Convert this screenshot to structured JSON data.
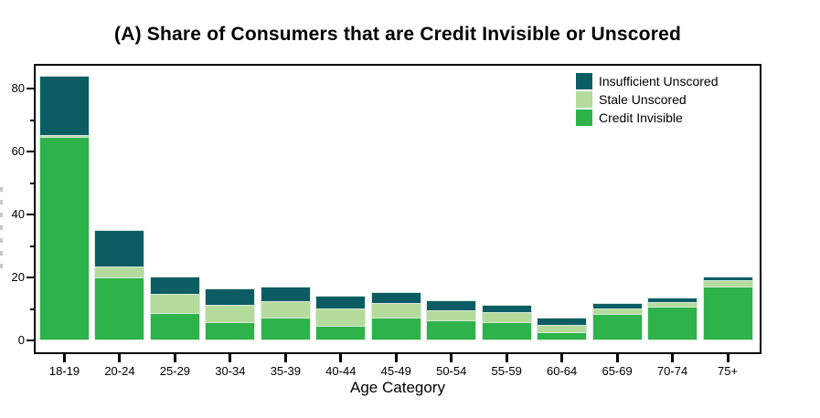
{
  "figure": {
    "title": "(A) Share of Consumers that are Credit Invisible or Unscored"
  },
  "chart_data": {
    "type": "bar",
    "stacked": true,
    "title": "(A) Share of Consumers that are Credit Invisible or Unscored",
    "xlabel": "Age Category",
    "ylabel": "",
    "ylim": [
      0,
      88
    ],
    "y_major_ticks": [
      0,
      20,
      40,
      60,
      80
    ],
    "y_minor_ticks": [
      10,
      30,
      50,
      70
    ],
    "grid": false,
    "categories": [
      "18-19",
      "20-24",
      "25-29",
      "30-34",
      "35-39",
      "40-44",
      "45-49",
      "50-54",
      "55-59",
      "60-64",
      "65-69",
      "70-74",
      "75+"
    ],
    "series": [
      {
        "name": "Credit Invisible",
        "color": "#2eb34a",
        "values": [
          64.8,
          20.0,
          8.8,
          5.6,
          7.3,
          4.6,
          7.3,
          6.4,
          5.9,
          2.4,
          8.6,
          11.0,
          17.3
        ]
      },
      {
        "name": "Stale Unscored",
        "color": "#b4db9c",
        "values": [
          0.5,
          3.6,
          6.0,
          5.9,
          5.3,
          5.8,
          4.9,
          3.4,
          3.2,
          2.7,
          1.7,
          1.5,
          2.1
        ]
      },
      {
        "name": "Insufficient Unscored",
        "color": "#0b5d63",
        "values": [
          18.8,
          11.5,
          5.6,
          5.1,
          4.6,
          3.9,
          3.2,
          2.9,
          2.1,
          2.1,
          1.7,
          1.0,
          0.8
        ]
      }
    ],
    "totals": [
      84.1,
      35.1,
      20.4,
      16.6,
      17.2,
      14.3,
      15.4,
      12.7,
      11.2,
      7.2,
      12.0,
      13.5,
      20.2
    ],
    "legend": {
      "position": "top-right-inside",
      "items": [
        {
          "label": "Insufficient Unscored",
          "color": "#0b5d63"
        },
        {
          "label": "Stale Unscored",
          "color": "#b4db9c"
        },
        {
          "label": "Credit Invisible",
          "color": "#2eb34a"
        }
      ]
    }
  },
  "colors": {
    "background": "#ffffff",
    "axis": "#000000",
    "bar_border": "#d9e9dc",
    "text": "#000000"
  }
}
